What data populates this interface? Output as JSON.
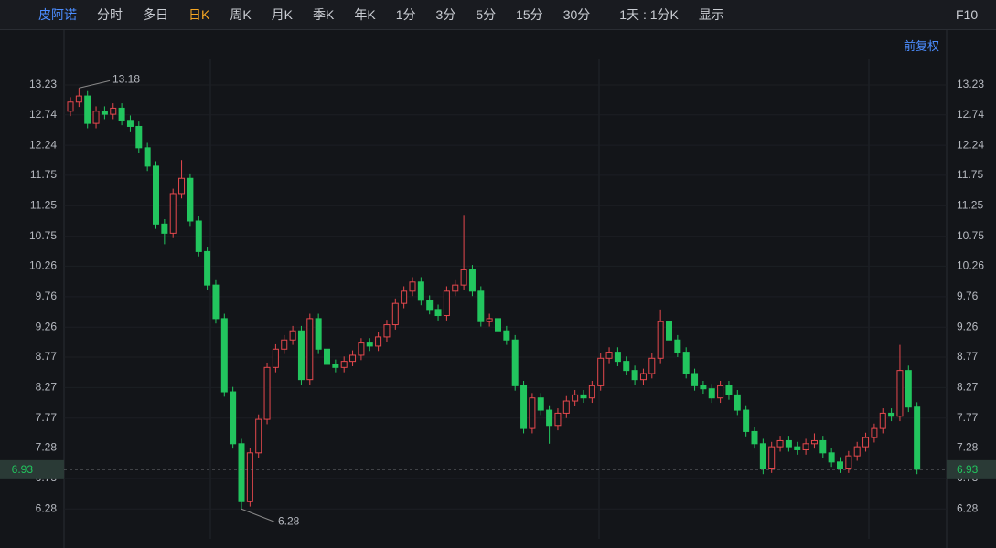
{
  "toolbar": {
    "stock": "皮阿诺",
    "tabs": [
      "分时",
      "多日",
      "日K",
      "周K",
      "月K",
      "季K",
      "年K",
      "1分",
      "3分",
      "5分",
      "15分",
      "30分"
    ],
    "active_tab": 2,
    "period": "1天 : 1分K",
    "display": "显示",
    "f10": "F10"
  },
  "adjust": "前复权",
  "chart_data": {
    "type": "candlestick",
    "up_color": "#e5484d",
    "down_color": "#22c55e",
    "ylim": [
      5.79,
      13.65
    ],
    "yticks": [
      13.23,
      12.74,
      12.24,
      11.75,
      11.25,
      10.75,
      10.26,
      9.76,
      9.26,
      8.77,
      8.27,
      7.77,
      7.28,
      6.78,
      6.28
    ],
    "grid": true,
    "open": [
      12.8,
      12.95,
      13.05,
      12.6,
      12.8,
      12.75,
      12.85,
      12.65,
      12.55,
      12.2,
      11.9,
      10.95,
      10.8,
      11.45,
      11.7,
      11.0,
      10.5,
      9.95,
      9.4,
      8.2,
      7.35,
      6.4,
      7.2,
      7.75,
      8.6,
      8.9,
      9.05,
      9.2,
      8.4,
      9.4,
      8.9,
      8.65,
      8.6,
      8.7,
      8.8,
      9.0,
      8.95,
      9.1,
      9.3,
      9.65,
      9.85,
      10.0,
      9.7,
      9.55,
      9.45,
      9.85,
      9.95,
      10.2,
      9.85,
      9.35,
      9.4,
      9.2,
      9.05,
      8.3,
      7.6,
      8.1,
      7.9,
      7.65,
      7.85,
      8.05,
      8.15,
      8.1,
      8.3,
      8.75,
      8.85,
      8.7,
      8.55,
      8.4,
      8.5,
      8.75,
      9.35,
      9.05,
      8.85,
      8.5,
      8.3,
      8.25,
      8.1,
      8.3,
      8.15,
      7.9,
      7.55,
      7.35,
      6.95,
      7.3,
      7.4,
      7.3,
      7.25,
      7.35,
      7.4,
      7.2,
      7.05,
      6.95,
      7.15,
      7.3,
      7.45,
      7.6,
      7.85,
      7.8,
      8.55,
      7.95
    ],
    "high": [
      13.03,
      13.18,
      13.13,
      12.88,
      12.88,
      12.93,
      12.93,
      12.73,
      12.63,
      12.28,
      11.98,
      11.03,
      11.53,
      12.0,
      11.78,
      11.08,
      10.58,
      10.03,
      9.48,
      8.28,
      7.43,
      7.28,
      7.83,
      8.68,
      8.98,
      9.13,
      9.28,
      9.28,
      9.48,
      9.48,
      8.98,
      8.73,
      8.78,
      8.88,
      9.08,
      9.08,
      9.18,
      9.38,
      9.73,
      9.93,
      10.08,
      10.08,
      9.78,
      9.63,
      9.93,
      10.03,
      11.1,
      10.28,
      9.93,
      9.48,
      9.48,
      9.28,
      9.13,
      8.38,
      8.18,
      8.18,
      7.98,
      7.93,
      8.13,
      8.23,
      8.23,
      8.38,
      8.83,
      8.93,
      8.93,
      8.78,
      8.63,
      8.58,
      8.83,
      9.55,
      9.43,
      9.13,
      8.93,
      8.58,
      8.38,
      8.33,
      8.38,
      8.38,
      8.23,
      7.98,
      7.63,
      7.43,
      7.38,
      7.48,
      7.48,
      7.38,
      7.43,
      7.52,
      7.48,
      7.28,
      7.13,
      7.23,
      7.38,
      7.53,
      7.68,
      7.93,
      7.93,
      8.97,
      8.63,
      8.03
    ],
    "low": [
      12.72,
      12.87,
      12.52,
      12.52,
      12.67,
      12.67,
      12.57,
      12.47,
      12.12,
      11.82,
      10.87,
      10.62,
      10.72,
      11.37,
      10.92,
      10.42,
      9.87,
      9.32,
      8.12,
      7.27,
      6.28,
      6.32,
      7.12,
      7.67,
      8.52,
      8.82,
      8.97,
      8.32,
      8.32,
      8.82,
      8.57,
      8.52,
      8.52,
      8.62,
      8.72,
      8.87,
      8.87,
      9.02,
      9.22,
      9.57,
      9.77,
      9.62,
      9.47,
      9.37,
      9.37,
      9.77,
      9.87,
      9.77,
      9.27,
      9.27,
      9.12,
      8.97,
      8.22,
      7.52,
      7.52,
      7.82,
      7.35,
      7.57,
      7.77,
      7.97,
      8.02,
      8.02,
      8.22,
      8.67,
      8.62,
      8.47,
      8.32,
      8.32,
      8.42,
      8.67,
      8.97,
      8.77,
      8.42,
      8.22,
      8.17,
      8.02,
      8.02,
      8.07,
      7.82,
      7.47,
      7.27,
      6.85,
      6.87,
      7.22,
      7.22,
      7.17,
      7.17,
      7.27,
      7.12,
      6.97,
      6.87,
      6.87,
      7.07,
      7.22,
      7.37,
      7.52,
      7.72,
      7.72,
      7.87,
      6.85
    ],
    "close": [
      12.95,
      13.05,
      12.6,
      12.8,
      12.75,
      12.85,
      12.65,
      12.55,
      12.2,
      11.9,
      10.95,
      10.8,
      11.45,
      11.7,
      11.0,
      10.5,
      9.95,
      9.4,
      8.2,
      7.35,
      6.4,
      7.2,
      7.75,
      8.6,
      8.9,
      9.05,
      9.2,
      8.4,
      9.4,
      8.9,
      8.65,
      8.6,
      8.7,
      8.8,
      9.0,
      8.95,
      9.1,
      9.3,
      9.65,
      9.85,
      10.0,
      9.7,
      9.55,
      9.45,
      9.85,
      9.95,
      10.2,
      9.85,
      9.35,
      9.4,
      9.2,
      9.05,
      8.3,
      7.6,
      8.1,
      7.9,
      7.65,
      7.85,
      8.05,
      8.15,
      8.1,
      8.3,
      8.75,
      8.85,
      8.7,
      8.55,
      8.4,
      8.5,
      8.75,
      9.35,
      9.05,
      8.85,
      8.5,
      8.3,
      8.25,
      8.1,
      8.3,
      8.15,
      7.9,
      7.55,
      7.35,
      6.95,
      7.3,
      7.4,
      7.3,
      7.25,
      7.35,
      7.4,
      7.2,
      7.05,
      6.95,
      7.15,
      7.3,
      7.45,
      7.6,
      7.85,
      7.8,
      8.55,
      7.95,
      6.93
    ]
  }
}
